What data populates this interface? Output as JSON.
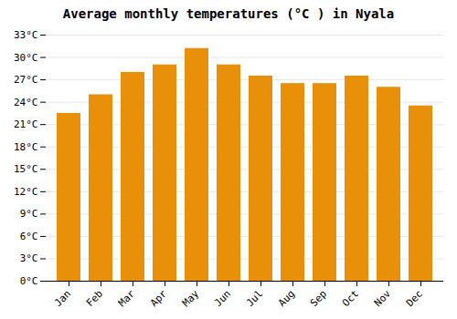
{
  "chart_data": {
    "type": "bar",
    "title": "Average monthly temperatures (°C ) in Nyala",
    "categories": [
      "Jan",
      "Feb",
      "Mar",
      "Apr",
      "May",
      "Jun",
      "Jul",
      "Aug",
      "Sep",
      "Oct",
      "Nov",
      "Dec"
    ],
    "values": [
      22.5,
      25.0,
      28.0,
      29.0,
      31.2,
      29.0,
      27.5,
      26.5,
      26.5,
      27.5,
      26.0,
      23.5
    ],
    "color": "#E8900A",
    "ylim": [
      0,
      33
    ],
    "yticks": [
      {
        "value": 0,
        "label": "0°C"
      },
      {
        "value": 3,
        "label": "3°C"
      },
      {
        "value": 6,
        "label": "6°C"
      },
      {
        "value": 9,
        "label": "9°C"
      },
      {
        "value": 12,
        "label": "12°C"
      },
      {
        "value": 15,
        "label": "15°C"
      },
      {
        "value": 18,
        "label": "18°C"
      },
      {
        "value": 21,
        "label": "21°C"
      },
      {
        "value": 24,
        "label": "24°C"
      },
      {
        "value": 27,
        "label": "27°C"
      },
      {
        "value": 30,
        "label": "30°C"
      },
      {
        "value": 33,
        "label": "33°C"
      }
    ],
    "grid": true
  }
}
